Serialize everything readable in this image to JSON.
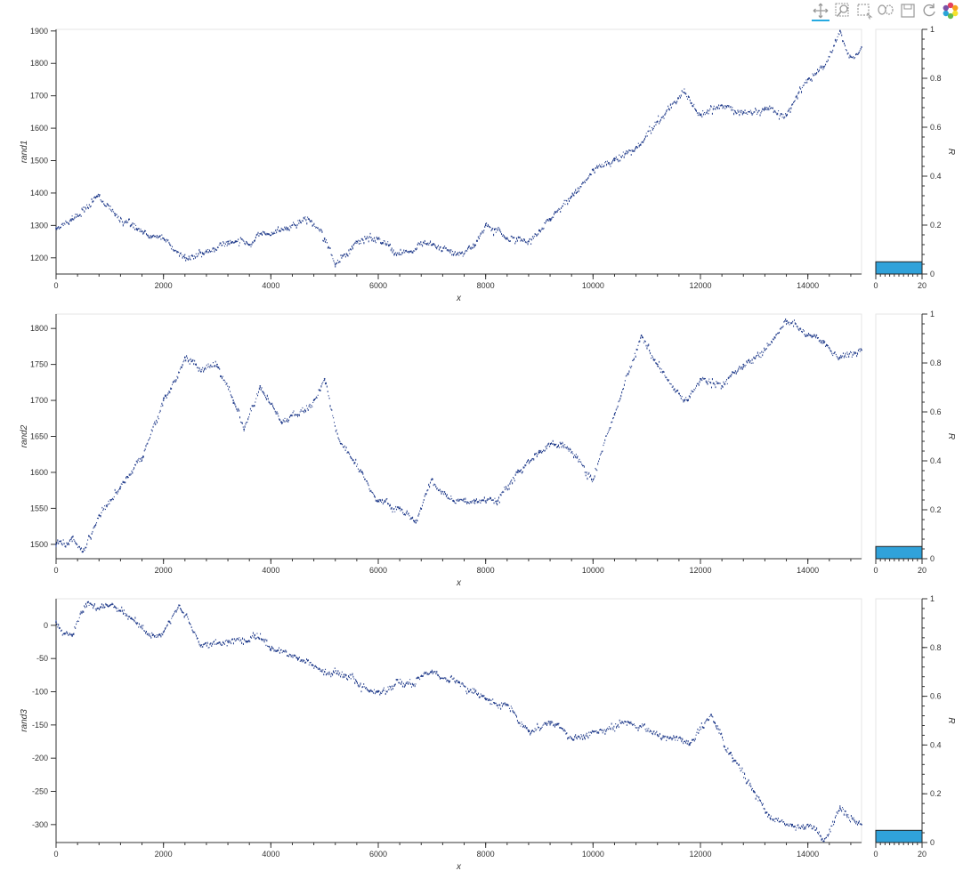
{
  "toolbar": {
    "tools": [
      {
        "name": "pan-tool",
        "icon": "pan-icon"
      },
      {
        "name": "box-zoom-tool",
        "icon": "box-zoom-icon"
      },
      {
        "name": "box-select-tool",
        "icon": "box-select-icon"
      },
      {
        "name": "lasso-select-tool",
        "icon": "lasso-icon"
      },
      {
        "name": "save-tool",
        "icon": "save-icon"
      },
      {
        "name": "reset-tool",
        "icon": "reset-icon"
      },
      {
        "name": "bokeh-logo",
        "icon": "bokeh-logo-icon"
      }
    ]
  },
  "colors": {
    "series": "#1f3a8a",
    "hist_fill": "#30a2da",
    "axis": "#333333"
  },
  "chart_data": [
    {
      "type": "scatter",
      "xlabel": "x",
      "ylabel": "rand1",
      "xlim": [
        0,
        15000
      ],
      "ylim": [
        1150,
        1905
      ],
      "xticks": [
        0,
        2000,
        4000,
        6000,
        8000,
        10000,
        12000,
        14000
      ],
      "yticks": [
        1200,
        1300,
        1400,
        1500,
        1600,
        1700,
        1800,
        1900
      ],
      "series": [
        {
          "x": [
            0,
            300,
            800,
            1100,
            1500,
            2000,
            2400,
            2800,
            3200,
            3600,
            4000,
            4300,
            4700,
            5000,
            5200,
            5600,
            6000,
            6400,
            6600,
            7000,
            7400,
            7800,
            8000,
            8400,
            8800,
            9200,
            9600,
            10000,
            10400,
            10800,
            11200,
            11700,
            12000,
            12400,
            12800,
            13200,
            13600,
            14000,
            14300,
            14600,
            14800,
            15000
          ],
          "y": [
            1290,
            1320,
            1390,
            1330,
            1290,
            1260,
            1200,
            1220,
            1250,
            1240,
            1270,
            1290,
            1320,
            1260,
            1180,
            1250,
            1260,
            1210,
            1220,
            1240,
            1210,
            1240,
            1300,
            1260,
            1250,
            1320,
            1390,
            1470,
            1500,
            1540,
            1620,
            1710,
            1640,
            1670,
            1650,
            1660,
            1640,
            1750,
            1790,
            1900,
            1820,
            1850
          ]
        }
      ],
      "hist": {
        "xlabel": "",
        "ylabel": "R",
        "xlim": [
          0,
          20
        ],
        "ylim": [
          0,
          1
        ],
        "xticks": [
          0,
          20
        ],
        "yticks": [
          0,
          0.2,
          0.4,
          0.6,
          0.8,
          1
        ],
        "bar": {
          "x0": 0,
          "x1": 20,
          "value": 0.05
        }
      }
    },
    {
      "type": "scatter",
      "xlabel": "x",
      "ylabel": "rand2",
      "xlim": [
        0,
        15000
      ],
      "ylim": [
        1480,
        1820
      ],
      "xticks": [
        0,
        2000,
        4000,
        6000,
        8000,
        10000,
        12000,
        14000
      ],
      "yticks": [
        1500,
        1550,
        1600,
        1650,
        1700,
        1750,
        1800
      ],
      "series": [
        {
          "x": [
            0,
            300,
            500,
            800,
            1200,
            1600,
            2000,
            2400,
            2700,
            3000,
            3300,
            3500,
            3800,
            4200,
            4500,
            4800,
            5000,
            5300,
            5700,
            6000,
            6400,
            6700,
            7000,
            7400,
            7800,
            8200,
            8600,
            9000,
            9400,
            9700,
            10000,
            10400,
            10900,
            11200,
            11700,
            12000,
            12400,
            12800,
            13200,
            13600,
            14000,
            14300,
            14600,
            15000
          ],
          "y": [
            1500,
            1510,
            1490,
            1540,
            1580,
            1620,
            1700,
            1760,
            1740,
            1750,
            1700,
            1660,
            1720,
            1670,
            1680,
            1700,
            1730,
            1640,
            1600,
            1560,
            1550,
            1530,
            1590,
            1560,
            1560,
            1560,
            1600,
            1630,
            1640,
            1620,
            1590,
            1680,
            1790,
            1750,
            1700,
            1730,
            1720,
            1750,
            1770,
            1810,
            1790,
            1780,
            1760,
            1770
          ]
        }
      ],
      "hist": {
        "xlabel": "",
        "ylabel": "R",
        "xlim": [
          0,
          20
        ],
        "ylim": [
          0,
          1
        ],
        "xticks": [
          0,
          20
        ],
        "yticks": [
          0,
          0.2,
          0.4,
          0.6,
          0.8,
          1
        ],
        "bar": {
          "x0": 0,
          "x1": 20,
          "value": 0.05
        }
      }
    },
    {
      "type": "scatter",
      "xlabel": "x",
      "ylabel": "rand3",
      "xlim": [
        0,
        15000
      ],
      "ylim": [
        -327,
        40
      ],
      "xticks": [
        0,
        2000,
        4000,
        6000,
        8000,
        10000,
        12000,
        14000
      ],
      "yticks": [
        0,
        -50,
        -100,
        -150,
        -200,
        -250,
        -300
      ],
      "series": [
        {
          "x": [
            0,
            300,
            600,
            1000,
            1400,
            1800,
            2000,
            2300,
            2700,
            3200,
            3700,
            4000,
            4500,
            5000,
            5400,
            6000,
            6500,
            7000,
            7500,
            8000,
            8400,
            8800,
            9200,
            9600,
            10000,
            10600,
            11200,
            11800,
            12200,
            12600,
            13000,
            13300,
            13700,
            14000,
            14300,
            14600,
            15000
          ],
          "y": [
            5,
            -15,
            35,
            30,
            10,
            -15,
            -10,
            30,
            -30,
            -25,
            -15,
            -35,
            -50,
            -70,
            -75,
            -100,
            -90,
            -70,
            -85,
            -110,
            -120,
            -160,
            -145,
            -170,
            -160,
            -145,
            -165,
            -180,
            -135,
            -200,
            -250,
            -290,
            -300,
            -300,
            -325,
            -275,
            -300
          ]
        }
      ],
      "hist": {
        "xlabel": "",
        "ylabel": "R",
        "xlim": [
          0,
          20
        ],
        "ylim": [
          0,
          1
        ],
        "xticks": [
          0,
          20
        ],
        "yticks": [
          0,
          0.2,
          0.4,
          0.6,
          0.8,
          1
        ],
        "bar": {
          "x0": 0,
          "x1": 20,
          "value": 0.05
        }
      }
    }
  ]
}
